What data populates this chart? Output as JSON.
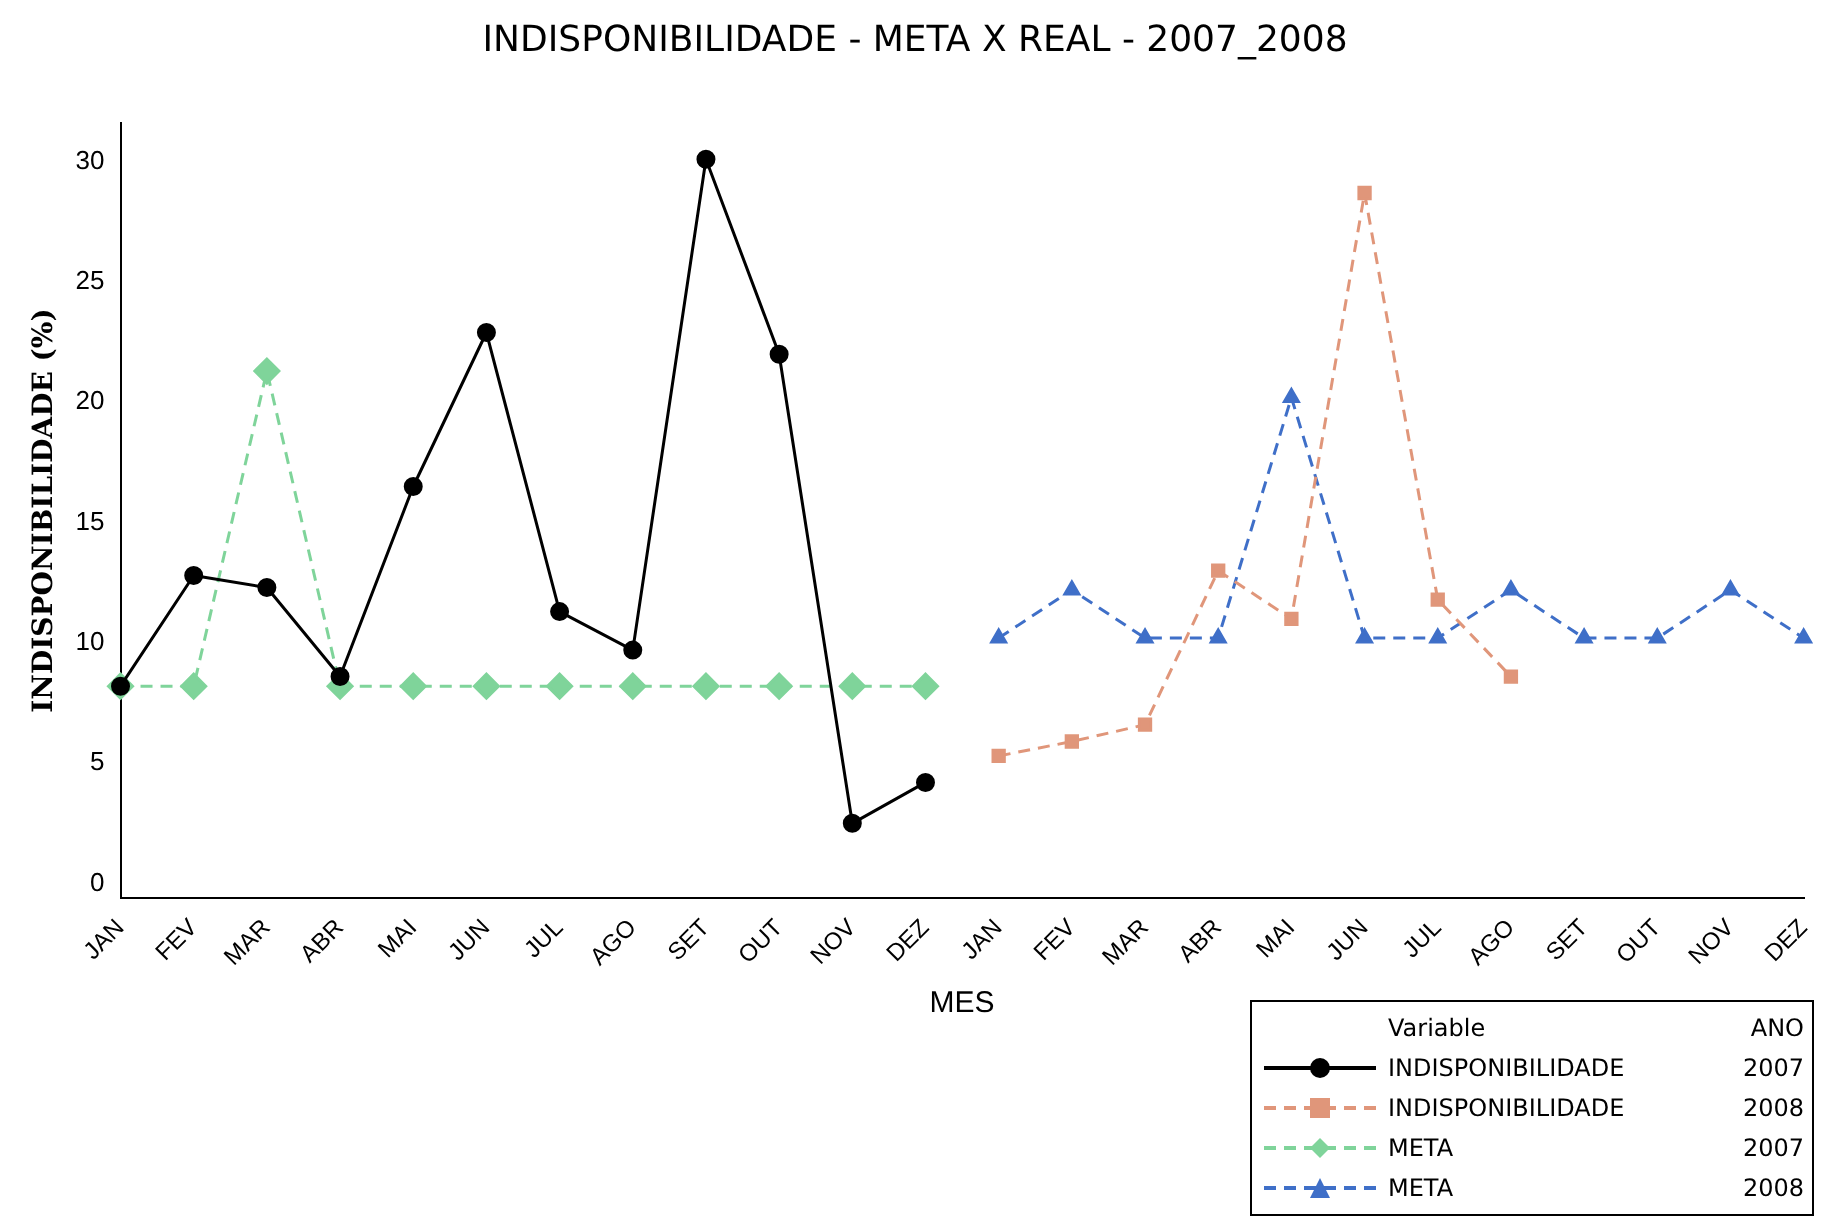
{
  "chart_data": {
    "type": "line",
    "title": "INDISPONIBILIDADE - META X REAL - 2007_2008",
    "xlabel": "MES",
    "ylabel": "INDISPONIBILIDADE (%)",
    "legend_title": "Variable ANO",
    "legend": "bottom right",
    "grid": false,
    "categories": [
      "JAN",
      "FEV",
      "MAR",
      "ABR",
      "MAI",
      "JUN",
      "JUL",
      "AGO",
      "SET",
      "OUT",
      "NOV",
      "DEZ",
      "JAN",
      "FEV",
      "MAR",
      "ABR",
      "MAI",
      "JUN",
      "JUL",
      "AGO",
      "SET",
      "OUT",
      "NOV",
      "DEZ"
    ],
    "ylim": [
      -0.6,
      31.6
    ],
    "yticks": [
      0,
      5,
      10,
      15,
      20,
      25,
      30
    ],
    "series": [
      {
        "name": "INDISPONIBILIDADE 2007",
        "color": "#000000",
        "marker": "circle",
        "line_style": "solid",
        "values": [
          8.2,
          12.8,
          12.3,
          8.6,
          16.5,
          22.9,
          11.3,
          9.7,
          30.1,
          22.0,
          2.5,
          4.2,
          null,
          null,
          null,
          null,
          null,
          null,
          null,
          null,
          null,
          null,
          null,
          null
        ]
      },
      {
        "name": "INDISPONIBILIDADE 2008",
        "color": "#e0967a",
        "marker": "square",
        "line_style": "dashed",
        "values": [
          null,
          null,
          null,
          null,
          null,
          null,
          null,
          null,
          null,
          null,
          null,
          null,
          5.3,
          5.9,
          6.6,
          13.0,
          11.0,
          28.7,
          11.8,
          8.6,
          null,
          null,
          null,
          null
        ]
      },
      {
        "name": "META 2007",
        "color": "#7fd49a",
        "marker": "diamond",
        "line_style": "dashed",
        "values": [
          8.2,
          8.2,
          21.3,
          8.2,
          8.2,
          8.2,
          8.2,
          8.2,
          8.2,
          8.2,
          8.2,
          8.2,
          null,
          null,
          null,
          null,
          null,
          null,
          null,
          null,
          null,
          null,
          null,
          null
        ]
      },
      {
        "name": "META 2008",
        "color": "#3f6fc8",
        "marker": "triangle",
        "line_style": "dashed",
        "values": [
          null,
          null,
          null,
          null,
          null,
          null,
          null,
          null,
          null,
          null,
          null,
          null,
          10.2,
          12.2,
          10.2,
          10.2,
          20.2,
          10.2,
          10.2,
          12.2,
          10.2,
          10.2,
          12.2,
          10.2
        ]
      }
    ]
  }
}
